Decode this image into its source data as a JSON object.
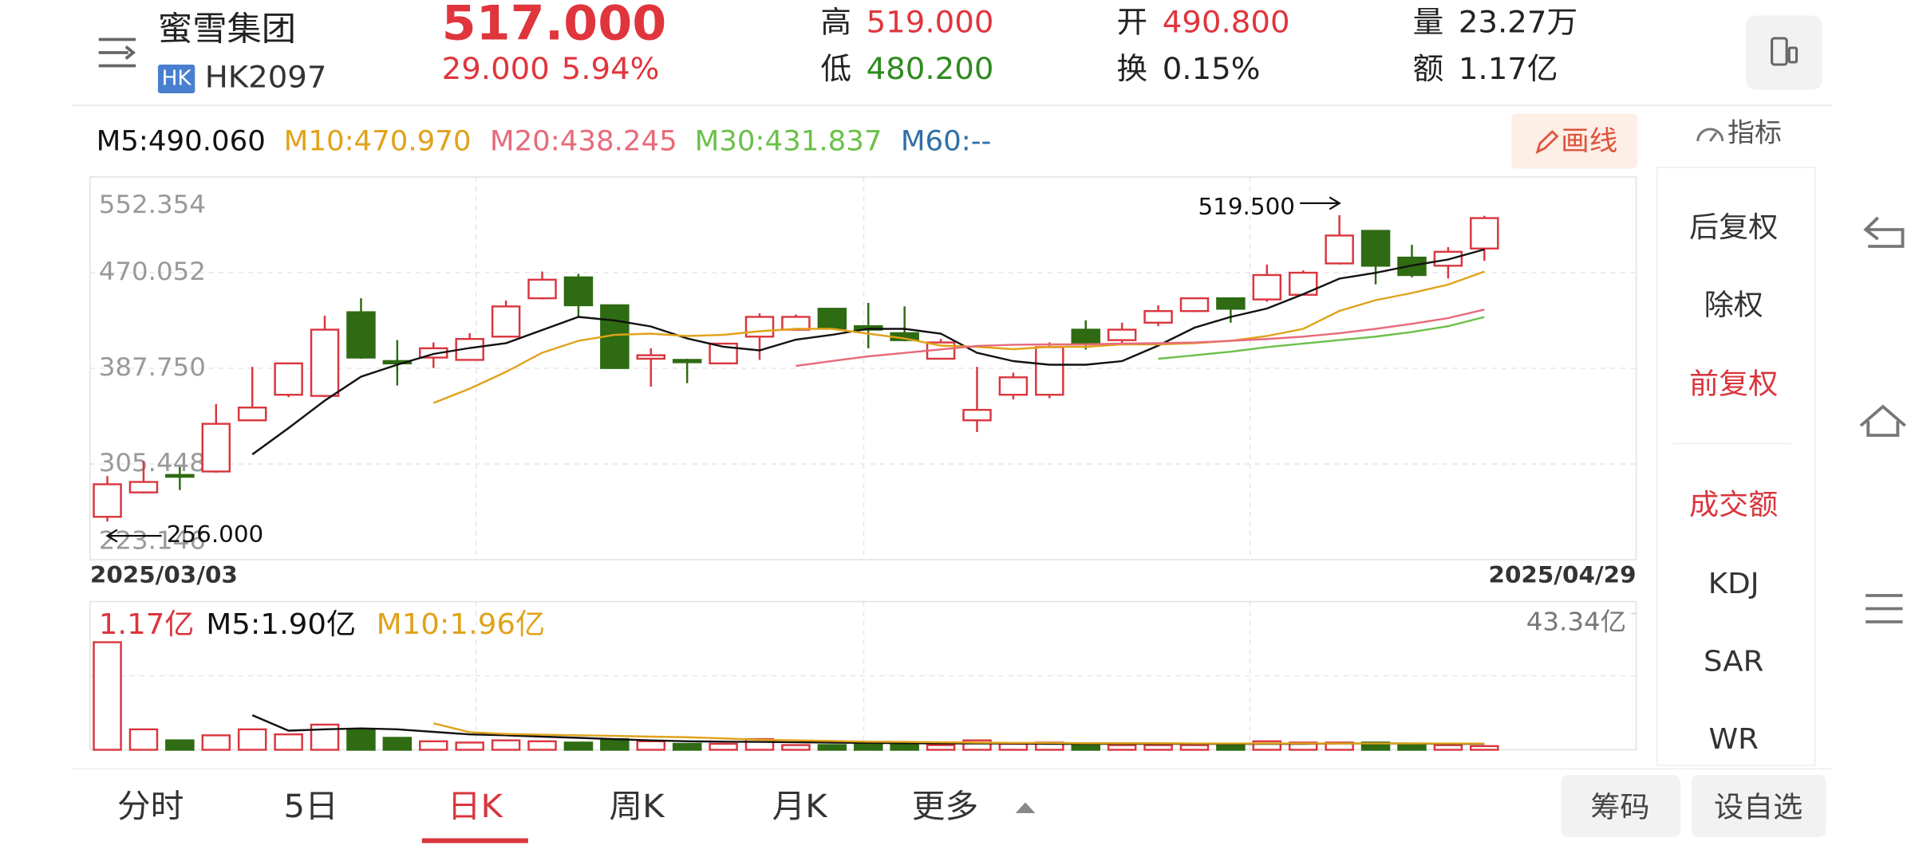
{
  "header": {
    "name": "蜜雪集团",
    "market": "HK",
    "code": "HK2097",
    "price": "517.000",
    "change": "29.000",
    "change_pct": "5.94%",
    "stats": [
      {
        "label": "高",
        "value": "519.000",
        "color": "#e0353c"
      },
      {
        "label": "低",
        "value": "480.200",
        "color": "#2f8a1f"
      },
      {
        "label": "开",
        "value": "490.800",
        "color": "#e0353c"
      },
      {
        "label": "换",
        "value": "0.15%",
        "color": "#222222"
      },
      {
        "label": "量",
        "value": "23.27万",
        "color": "#222222"
      },
      {
        "label": "额",
        "value": "1.17亿",
        "color": "#222222"
      }
    ]
  },
  "ma_legend": [
    {
      "text": "M5:490.060",
      "color": "#111111"
    },
    {
      "text": "M10:470.970",
      "color": "#e0a21a"
    },
    {
      "text": "M20:438.245",
      "color": "#e86a7a"
    },
    {
      "text": "M30:431.837",
      "color": "#6cc04a"
    },
    {
      "text": "M60:--",
      "color": "#2f6fa8"
    }
  ],
  "draw_button": "画线",
  "indicator_button": "指标",
  "side_menu": [
    {
      "label": "后复权"
    },
    {
      "label": "除权"
    },
    {
      "label": "前复权",
      "active": true
    },
    {
      "label": "成交额",
      "active": true
    },
    {
      "label": "KDJ"
    },
    {
      "label": "SAR"
    },
    {
      "label": "WR"
    }
  ],
  "tabs": [
    {
      "label": "分时"
    },
    {
      "label": "5日"
    },
    {
      "label": "日K",
      "active": true
    },
    {
      "label": "周K"
    },
    {
      "label": "月K"
    },
    {
      "label": "更多"
    }
  ],
  "actions": [
    "筹码",
    "设自选"
  ],
  "chart_data": [
    {
      "type": "candlestick",
      "categories": [
        "2025/03/03",
        null,
        null,
        null,
        null,
        null,
        null,
        null,
        null,
        null,
        null,
        null,
        null,
        null,
        null,
        null,
        null,
        null,
        null,
        null,
        null,
        null,
        null,
        null,
        null,
        null,
        null,
        null,
        null,
        null,
        null,
        null,
        null,
        null,
        null,
        null,
        null,
        null,
        "2025/04/29"
      ],
      "open": [
        260,
        281,
        296,
        299,
        343,
        365,
        364,
        436,
        394,
        397,
        395,
        415,
        448,
        466,
        442,
        396,
        395,
        392,
        415,
        421,
        439,
        424,
        418,
        396,
        343,
        365,
        365,
        421,
        412,
        427,
        437,
        448,
        447,
        451,
        478,
        506,
        483,
        476,
        490.8
      ],
      "high": [
        295,
        308,
        303,
        357,
        389,
        392,
        433,
        448,
        412,
        410,
        418,
        446,
        471,
        469,
        442,
        405,
        396,
        409,
        435,
        434,
        439,
        444,
        441,
        413,
        389,
        384,
        410,
        429,
        427,
        442,
        448,
        448,
        477,
        472,
        519.5,
        506,
        494,
        492,
        519
      ],
      "low": [
        256,
        280,
        283,
        298,
        343,
        363,
        363,
        396,
        373,
        388,
        395,
        415,
        447,
        432,
        388,
        372,
        375,
        392,
        395,
        421,
        422,
        405,
        411,
        396,
        333,
        361,
        362,
        404,
        408,
        424,
        436,
        427,
        445,
        451,
        477,
        460,
        466,
        465,
        480.2
      ],
      "close": [
        288,
        290,
        295,
        340,
        354,
        392,
        421,
        397,
        392,
        405,
        413,
        441,
        464,
        442,
        388,
        399,
        393,
        409,
        432,
        432,
        422,
        421,
        412,
        410,
        352,
        380,
        406,
        409,
        421,
        437,
        448,
        439,
        468,
        470,
        502,
        476,
        468,
        488,
        517
      ],
      "up_color": "#d9363e",
      "down_color": "#2e6b12",
      "series": [
        {
          "color": "#111111",
          "values": [
            null,
            null,
            null,
            null,
            313.7,
            336.3,
            360.0,
            380.6,
            390.8,
            400.1,
            405.2,
            409.4,
            420.7,
            432.0,
            428.9,
            423.8,
            413.5,
            406.3,
            403.2,
            412.4,
            416.6,
            421.7,
            421.7,
            417.6,
            401.1,
            393.9,
            390.8,
            390.8,
            393.9,
            407.3,
            422.7,
            432.0,
            439.2,
            451.5,
            464.9,
            470.0,
            476.2,
            481.4,
            490.06
          ]
        },
        {
          "color": "#e0a21a",
          "values": [
            null,
            null,
            null,
            null,
            null,
            null,
            null,
            null,
            null,
            357.9,
            370.3,
            384.7,
            401.1,
            411.4,
            416.6,
            417.6,
            415.5,
            416.6,
            419.6,
            421.7,
            421.7,
            417.6,
            413.5,
            407.3,
            406.3,
            404.2,
            406.3,
            406.3,
            408.3,
            408.3,
            409.4,
            411.4,
            415.5,
            421.7,
            437.1,
            446.4,
            452.6,
            459.8,
            470.97
          ]
        },
        {
          "color": "#e86a7a",
          "values": [
            null,
            null,
            null,
            null,
            null,
            null,
            null,
            null,
            null,
            null,
            null,
            null,
            null,
            null,
            null,
            null,
            null,
            null,
            null,
            389.8,
            394,
            398,
            401,
            404,
            407,
            408,
            408.3,
            408.3,
            409,
            409.4,
            410,
            411.4,
            413,
            415,
            418,
            421.7,
            426,
            431,
            438.245
          ]
        },
        {
          "color": "#6cc04a",
          "values": [
            null,
            null,
            null,
            null,
            null,
            null,
            null,
            null,
            null,
            null,
            null,
            null,
            null,
            null,
            null,
            null,
            null,
            null,
            null,
            null,
            null,
            null,
            null,
            null,
            null,
            null,
            null,
            null,
            null,
            396,
            399,
            402,
            406,
            409,
            412,
            415,
            419,
            424,
            431.837
          ]
        }
      ],
      "ylim": [
        223.146,
        552.354
      ],
      "yticks": [
        223.146,
        305.448,
        {
          "value": 387.75,
          "label": "387.750"
        },
        470.052,
        552.354
      ],
      "annotations": [
        {
          "text": "519.500"
        },
        {
          "text": "256.000"
        }
      ]
    },
    {
      "type": "bar",
      "legend": [
        {
          "text": "1.17亿",
          "color": "#d9363e"
        },
        {
          "text": "M5:1.90亿",
          "color": "#111111"
        },
        {
          "text": "M10:1.96亿",
          "color": "#e0a21a"
        }
      ],
      "values": [
        34.2,
        6.5,
        3.0,
        4.6,
        6.5,
        4.9,
        8.0,
        6.5,
        3.8,
        2.7,
        2.3,
        3.0,
        2.7,
        2.3,
        3.4,
        2.7,
        1.9,
        1.9,
        3.4,
        1.5,
        1.5,
        1.9,
        1.9,
        1.5,
        3.0,
        1.9,
        2.3,
        1.9,
        1.5,
        1.5,
        1.5,
        1.9,
        2.7,
        2.3,
        2.3,
        2.3,
        1.5,
        1.5,
        1.17
      ],
      "series": [
        {
          "color": "#111111",
          "values": [
            null,
            null,
            null,
            null,
            11.0,
            6.1,
            6.5,
            6.8,
            6.5,
            5.7,
            4.9,
            4.6,
            4.2,
            3.8,
            3.4,
            3.0,
            2.7,
            2.6,
            2.5,
            2.4,
            2.3,
            2.2,
            2.1,
            2.0,
            2.0,
            2.0,
            1.9,
            1.9,
            1.9,
            1.9,
            1.9,
            1.9,
            1.9,
            1.9,
            2.0,
            2.0,
            2.0,
            1.9,
            1.9
          ]
        },
        {
          "color": "#e0a21a",
          "values": [
            null,
            null,
            null,
            null,
            null,
            null,
            null,
            null,
            null,
            8.4,
            5.6,
            5.0,
            4.8,
            4.6,
            4.4,
            4.2,
            4.0,
            3.6,
            3.2,
            3.0,
            2.8,
            2.6,
            2.5,
            2.4,
            2.3,
            2.2,
            2.2,
            2.1,
            2.1,
            2.1,
            2.0,
            2.0,
            2.0,
            2.0,
            2.0,
            2.0,
            2.0,
            2.0,
            1.96
          ]
        }
      ],
      "ylim": [
        0,
        43.34
      ],
      "yticks": [
        {
          "value": 43.34,
          "label": "43.34亿"
        }
      ]
    }
  ]
}
